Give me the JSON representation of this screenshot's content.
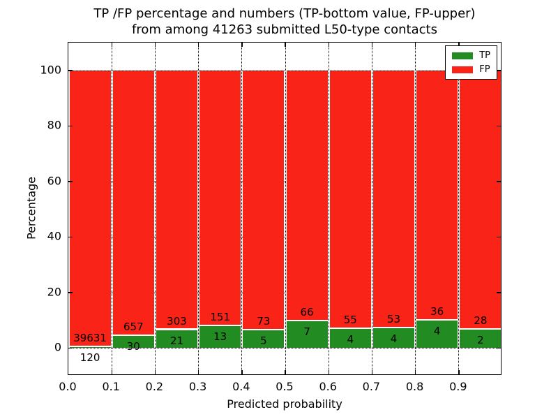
{
  "figure": {
    "title_line1": "TP /FP percentage and numbers (TP-bottom value, FP-upper)",
    "title_line2": "from among 41263 submitted L50-type contacts",
    "xlabel": "Predicted probability",
    "ylabel": "Percentage"
  },
  "colors": {
    "tp": "#228b22",
    "fp": "#fa2318",
    "axis": "#000000",
    "background": "#ffffff"
  },
  "legend": {
    "position": "upper right",
    "items": [
      {
        "label": "TP",
        "color": "#228b22"
      },
      {
        "label": "FP",
        "color": "#fa2318"
      }
    ]
  },
  "chart_data": {
    "type": "bar",
    "stacked": true,
    "normalized": "each bin scaled to 100%",
    "title": "TP /FP percentage and numbers (TP-bottom value, FP-upper) from among 41263 submitted L50-type contacts",
    "xlabel": "Predicted probability",
    "ylabel": "Percentage",
    "total_submitted": 41263,
    "xlim": [
      0.0,
      1.0
    ],
    "ylim": [
      -10,
      110
    ],
    "bin_width": 0.1,
    "categories": [
      0.0,
      0.1,
      0.2,
      0.3,
      0.4,
      0.5,
      0.6,
      0.7,
      0.8,
      0.9
    ],
    "x_tick_labels": [
      "0.0",
      "0.1",
      "0.2",
      "0.3",
      "0.4",
      "0.5",
      "0.6",
      "0.7",
      "0.8",
      "0.9"
    ],
    "y_ticks": [
      0,
      20,
      40,
      60,
      80,
      100
    ],
    "y_tick_labels": [
      "0",
      "20",
      "40",
      "60",
      "80",
      "100"
    ],
    "series": [
      {
        "name": "TP",
        "color": "#228b22",
        "counts": [
          120,
          30,
          21,
          13,
          5,
          7,
          4,
          4,
          4,
          2
        ]
      },
      {
        "name": "FP",
        "color": "#fa2318",
        "counts": [
          39631,
          657,
          303,
          151,
          73,
          66,
          55,
          53,
          36,
          28
        ]
      }
    ],
    "tp_percent_heights": [
      0.3,
      4.37,
      6.48,
      7.93,
      6.41,
      9.59,
      6.78,
      7.02,
      10.0,
      6.67
    ],
    "grid": "dotted",
    "legend_entries": [
      "TP",
      "FP"
    ]
  }
}
